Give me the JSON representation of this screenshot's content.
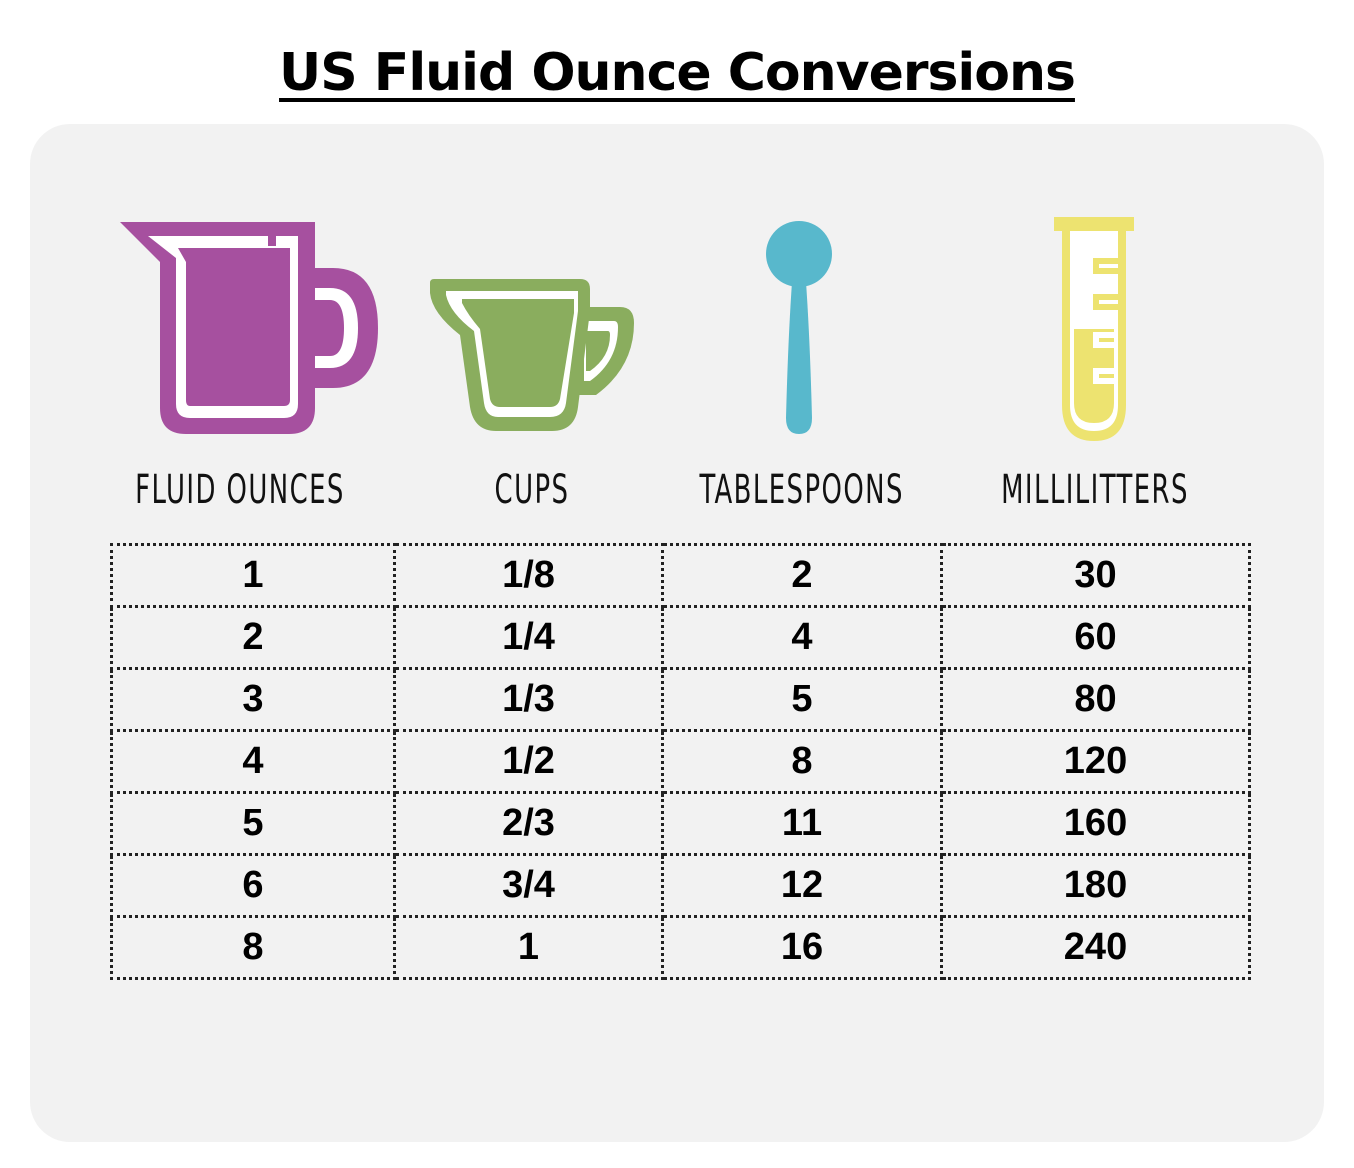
{
  "title": "US Fluid Ounce Conversions",
  "colors": {
    "fluid_ounces_icon": "#a6509f",
    "cups_icon": "#8aad5e",
    "tablespoons_icon": "#58b8cc",
    "milliliters_icon": "#ede370",
    "card_background": "#f2f2f2"
  },
  "columns": [
    {
      "label": "FLUID OUNCES",
      "icon": "measuring-pitcher-icon"
    },
    {
      "label": "CUPS",
      "icon": "measuring-cup-icon"
    },
    {
      "label": "TABLESPOONS",
      "icon": "spoon-icon"
    },
    {
      "label": "MILLILITTERS",
      "icon": "test-tube-icon"
    }
  ],
  "rows": [
    [
      "1",
      "1/8",
      "2",
      "30"
    ],
    [
      "2",
      "1/4",
      "4",
      "60"
    ],
    [
      "3",
      "1/3",
      "5",
      "80"
    ],
    [
      "4",
      "1/2",
      "8",
      "120"
    ],
    [
      "5",
      "2/3",
      "11",
      "160"
    ],
    [
      "6",
      "3/4",
      "12",
      "180"
    ],
    [
      "8",
      "1",
      "16",
      "240"
    ]
  ]
}
